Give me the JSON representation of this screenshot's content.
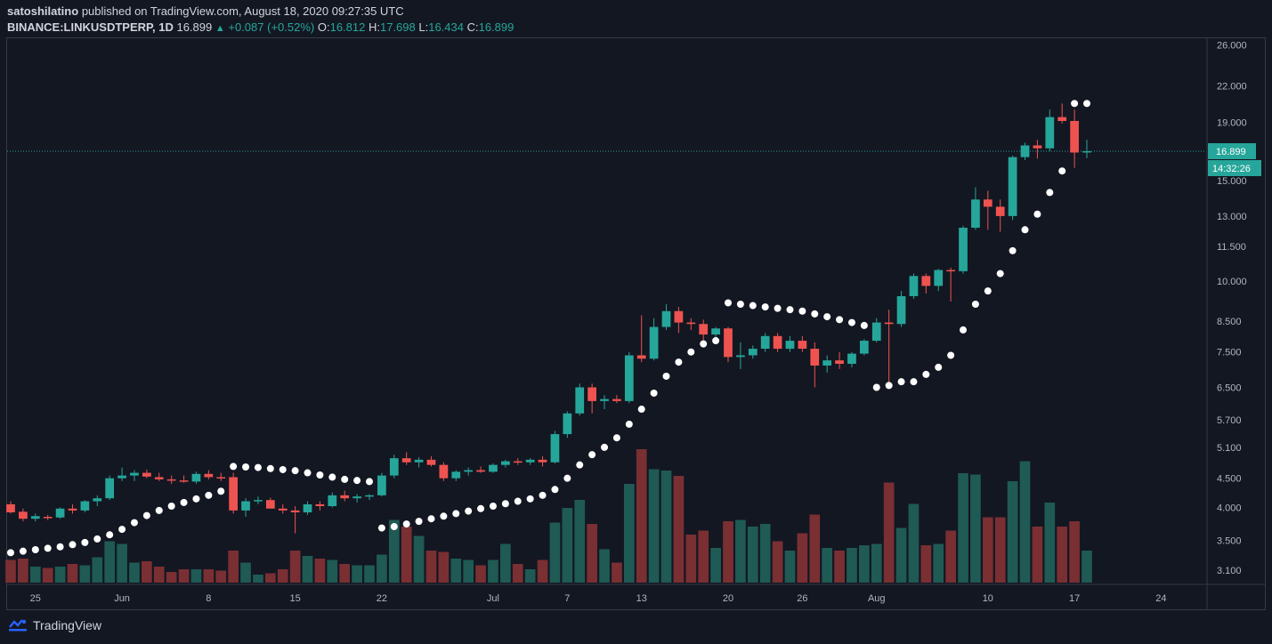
{
  "header": {
    "author": "satoshilatino",
    "published_text": "published on TradingView.com, August 18, 2020 09:27:35 UTC",
    "symbol": "BINANCE:LINKUSDTPERP, 1D",
    "last": "16.899",
    "change": "+0.087 (+0.52%)",
    "o_label": "O:",
    "o": "16.812",
    "h_label": "H:",
    "h": "17.698",
    "l_label": "L:",
    "l": "16.434",
    "c_label": "C:",
    "c": "16.899"
  },
  "price_tag": "16.899",
  "time_tag": "14:32:26",
  "footer": {
    "brand": "TradingView",
    "icon": "tradingview-logo-icon"
  },
  "colors": {
    "up": "#26a69a",
    "down": "#ef5350",
    "vol_up": "#1f5a55",
    "vol_down": "#7a2f33",
    "bg": "#131722",
    "sar": "#ffffff"
  },
  "chart_data": {
    "type": "candlestick",
    "scale": "log",
    "ylim": [
      2.95,
      26.5
    ],
    "y_ticks": [
      "26.000",
      "22.000",
      "19.000",
      "16.899",
      "15.000",
      "13.000",
      "11.500",
      "10.000",
      "8.500",
      "7.500",
      "6.500",
      "5.700",
      "5.100",
      "4.500",
      "4.000",
      "3.500",
      "3.100"
    ],
    "x_ticks": [
      {
        "label": "25",
        "date": "2020-05-25"
      },
      {
        "label": "Jun",
        "date": "2020-06-01"
      },
      {
        "label": "8",
        "date": "2020-06-08"
      },
      {
        "label": "15",
        "date": "2020-06-15"
      },
      {
        "label": "22",
        "date": "2020-06-22"
      },
      {
        "label": "Jul",
        "date": "2020-07-01"
      },
      {
        "label": "7",
        "date": "2020-07-07"
      },
      {
        "label": "13",
        "date": "2020-07-13"
      },
      {
        "label": "20",
        "date": "2020-07-20"
      },
      {
        "label": "26",
        "date": "2020-07-26"
      },
      {
        "label": "Aug",
        "date": "2020-08-01"
      },
      {
        "label": "10",
        "date": "2020-08-10"
      },
      {
        "label": "17",
        "date": "2020-08-17"
      },
      {
        "label": "24",
        "date": "2020-08-24"
      }
    ],
    "last_price": 16.899,
    "candles": [
      {
        "d": "2020-05-23",
        "o": 4.05,
        "h": 4.1,
        "l": 3.9,
        "c": 3.92,
        "v": 0.17
      },
      {
        "d": "2020-05-24",
        "o": 3.93,
        "h": 3.98,
        "l": 3.78,
        "c": 3.82,
        "v": 0.18
      },
      {
        "d": "2020-05-25",
        "o": 3.82,
        "h": 3.9,
        "l": 3.78,
        "c": 3.86,
        "v": 0.12
      },
      {
        "d": "2020-05-26",
        "o": 3.85,
        "h": 3.88,
        "l": 3.8,
        "c": 3.84,
        "v": 0.11
      },
      {
        "d": "2020-05-27",
        "o": 3.84,
        "h": 4.0,
        "l": 3.82,
        "c": 3.98,
        "v": 0.12
      },
      {
        "d": "2020-05-28",
        "o": 3.98,
        "h": 4.05,
        "l": 3.9,
        "c": 3.95,
        "v": 0.14
      },
      {
        "d": "2020-05-29",
        "o": 3.95,
        "h": 4.12,
        "l": 3.92,
        "c": 4.1,
        "v": 0.13
      },
      {
        "d": "2020-05-30",
        "o": 4.1,
        "h": 4.2,
        "l": 4.02,
        "c": 4.15,
        "v": 0.19
      },
      {
        "d": "2020-05-31",
        "o": 4.15,
        "h": 4.55,
        "l": 4.12,
        "c": 4.5,
        "v": 0.31
      },
      {
        "d": "2020-06-01",
        "o": 4.5,
        "h": 4.7,
        "l": 4.45,
        "c": 4.55,
        "v": 0.29
      },
      {
        "d": "2020-06-02",
        "o": 4.55,
        "h": 4.65,
        "l": 4.45,
        "c": 4.6,
        "v": 0.15
      },
      {
        "d": "2020-06-03",
        "o": 4.6,
        "h": 4.66,
        "l": 4.5,
        "c": 4.53,
        "v": 0.16
      },
      {
        "d": "2020-06-04",
        "o": 4.52,
        "h": 4.6,
        "l": 4.45,
        "c": 4.48,
        "v": 0.12
      },
      {
        "d": "2020-06-05",
        "o": 4.48,
        "h": 4.55,
        "l": 4.4,
        "c": 4.46,
        "v": 0.08
      },
      {
        "d": "2020-06-06",
        "o": 4.46,
        "h": 4.55,
        "l": 4.42,
        "c": 4.44,
        "v": 0.1
      },
      {
        "d": "2020-06-07",
        "o": 4.44,
        "h": 4.62,
        "l": 4.4,
        "c": 4.58,
        "v": 0.1
      },
      {
        "d": "2020-06-08",
        "o": 4.58,
        "h": 4.65,
        "l": 4.48,
        "c": 4.52,
        "v": 0.1
      },
      {
        "d": "2020-06-09",
        "o": 4.52,
        "h": 4.6,
        "l": 4.45,
        "c": 4.5,
        "v": 0.09
      },
      {
        "d": "2020-06-10",
        "o": 4.52,
        "h": 4.6,
        "l": 3.9,
        "c": 3.95,
        "v": 0.24
      },
      {
        "d": "2020-06-11",
        "o": 3.95,
        "h": 4.15,
        "l": 3.85,
        "c": 4.1,
        "v": 0.15
      },
      {
        "d": "2020-06-12",
        "o": 4.1,
        "h": 4.18,
        "l": 4.05,
        "c": 4.12,
        "v": 0.06
      },
      {
        "d": "2020-06-13",
        "o": 4.12,
        "h": 4.16,
        "l": 4.0,
        "c": 3.98,
        "v": 0.07
      },
      {
        "d": "2020-06-14",
        "o": 3.98,
        "h": 4.05,
        "l": 3.9,
        "c": 3.95,
        "v": 0.1
      },
      {
        "d": "2020-06-15",
        "o": 3.95,
        "h": 4.02,
        "l": 3.6,
        "c": 3.92,
        "v": 0.24
      },
      {
        "d": "2020-06-16",
        "o": 3.92,
        "h": 4.1,
        "l": 3.88,
        "c": 4.05,
        "v": 0.2
      },
      {
        "d": "2020-06-17",
        "o": 4.05,
        "h": 4.1,
        "l": 3.95,
        "c": 4.02,
        "v": 0.18
      },
      {
        "d": "2020-06-18",
        "o": 4.02,
        "h": 4.25,
        "l": 4.0,
        "c": 4.2,
        "v": 0.17
      },
      {
        "d": "2020-06-19",
        "o": 4.2,
        "h": 4.28,
        "l": 4.1,
        "c": 4.15,
        "v": 0.14
      },
      {
        "d": "2020-06-20",
        "o": 4.15,
        "h": 4.22,
        "l": 4.08,
        "c": 4.18,
        "v": 0.13
      },
      {
        "d": "2020-06-21",
        "o": 4.18,
        "h": 4.22,
        "l": 4.12,
        "c": 4.2,
        "v": 0.13
      },
      {
        "d": "2020-06-22",
        "o": 4.2,
        "h": 4.6,
        "l": 4.18,
        "c": 4.55,
        "v": 0.21
      },
      {
        "d": "2020-06-23",
        "o": 4.55,
        "h": 4.95,
        "l": 4.5,
        "c": 4.88,
        "v": 0.47
      },
      {
        "d": "2020-06-24",
        "o": 4.88,
        "h": 5.0,
        "l": 4.75,
        "c": 4.8,
        "v": 0.42
      },
      {
        "d": "2020-06-25",
        "o": 4.8,
        "h": 4.9,
        "l": 4.7,
        "c": 4.85,
        "v": 0.35
      },
      {
        "d": "2020-06-26",
        "o": 4.85,
        "h": 4.92,
        "l": 4.72,
        "c": 4.75,
        "v": 0.24
      },
      {
        "d": "2020-06-27",
        "o": 4.75,
        "h": 4.8,
        "l": 4.45,
        "c": 4.5,
        "v": 0.23
      },
      {
        "d": "2020-06-28",
        "o": 4.5,
        "h": 4.65,
        "l": 4.45,
        "c": 4.62,
        "v": 0.18
      },
      {
        "d": "2020-06-29",
        "o": 4.62,
        "h": 4.7,
        "l": 4.55,
        "c": 4.65,
        "v": 0.17
      },
      {
        "d": "2020-06-30",
        "o": 4.65,
        "h": 4.72,
        "l": 4.6,
        "c": 4.62,
        "v": 0.13
      },
      {
        "d": "2020-07-01",
        "o": 4.62,
        "h": 4.78,
        "l": 4.6,
        "c": 4.75,
        "v": 0.17
      },
      {
        "d": "2020-07-02",
        "o": 4.75,
        "h": 4.85,
        "l": 4.7,
        "c": 4.82,
        "v": 0.29
      },
      {
        "d": "2020-07-03",
        "o": 4.82,
        "h": 4.88,
        "l": 4.75,
        "c": 4.8,
        "v": 0.14
      },
      {
        "d": "2020-07-04",
        "o": 4.8,
        "h": 4.88,
        "l": 4.75,
        "c": 4.85,
        "v": 0.1
      },
      {
        "d": "2020-07-05",
        "o": 4.85,
        "h": 4.92,
        "l": 4.72,
        "c": 4.8,
        "v": 0.17
      },
      {
        "d": "2020-07-06",
        "o": 4.8,
        "h": 5.45,
        "l": 4.78,
        "c": 5.38,
        "v": 0.45
      },
      {
        "d": "2020-07-07",
        "o": 5.38,
        "h": 5.9,
        "l": 5.3,
        "c": 5.85,
        "v": 0.56
      },
      {
        "d": "2020-07-08",
        "o": 5.85,
        "h": 6.6,
        "l": 5.8,
        "c": 6.5,
        "v": 0.62
      },
      {
        "d": "2020-07-09",
        "o": 6.5,
        "h": 6.6,
        "l": 5.85,
        "c": 6.15,
        "v": 0.44
      },
      {
        "d": "2020-07-10",
        "o": 6.15,
        "h": 6.3,
        "l": 5.95,
        "c": 6.2,
        "v": 0.25
      },
      {
        "d": "2020-07-11",
        "o": 6.2,
        "h": 6.3,
        "l": 6.1,
        "c": 6.15,
        "v": 0.15
      },
      {
        "d": "2020-07-12",
        "o": 6.15,
        "h": 7.5,
        "l": 6.1,
        "c": 7.4,
        "v": 0.74
      },
      {
        "d": "2020-07-13",
        "o": 7.4,
        "h": 8.7,
        "l": 7.2,
        "c": 7.3,
        "v": 1.0
      },
      {
        "d": "2020-07-14",
        "o": 7.3,
        "h": 8.6,
        "l": 7.25,
        "c": 8.3,
        "v": 0.85
      },
      {
        "d": "2020-07-15",
        "o": 8.3,
        "h": 9.1,
        "l": 8.2,
        "c": 8.85,
        "v": 0.84
      },
      {
        "d": "2020-07-16",
        "o": 8.85,
        "h": 9.0,
        "l": 8.1,
        "c": 8.45,
        "v": 0.8
      },
      {
        "d": "2020-07-17",
        "o": 8.45,
        "h": 8.6,
        "l": 8.2,
        "c": 8.4,
        "v": 0.36
      },
      {
        "d": "2020-07-18",
        "o": 8.4,
        "h": 8.55,
        "l": 7.8,
        "c": 8.05,
        "v": 0.39
      },
      {
        "d": "2020-07-19",
        "o": 8.05,
        "h": 8.3,
        "l": 7.9,
        "c": 8.25,
        "v": 0.26
      },
      {
        "d": "2020-07-20",
        "o": 8.25,
        "h": 8.3,
        "l": 7.2,
        "c": 7.35,
        "v": 0.46
      },
      {
        "d": "2020-07-21",
        "o": 7.35,
        "h": 7.8,
        "l": 7.0,
        "c": 7.4,
        "v": 0.47
      },
      {
        "d": "2020-07-22",
        "o": 7.4,
        "h": 7.7,
        "l": 7.3,
        "c": 7.6,
        "v": 0.42
      },
      {
        "d": "2020-07-23",
        "o": 7.6,
        "h": 8.1,
        "l": 7.5,
        "c": 8.0,
        "v": 0.44
      },
      {
        "d": "2020-07-24",
        "o": 8.0,
        "h": 8.1,
        "l": 7.5,
        "c": 7.6,
        "v": 0.31
      },
      {
        "d": "2020-07-25",
        "o": 7.6,
        "h": 8.0,
        "l": 7.5,
        "c": 7.85,
        "v": 0.24
      },
      {
        "d": "2020-07-26",
        "o": 7.85,
        "h": 8.0,
        "l": 7.5,
        "c": 7.6,
        "v": 0.37
      },
      {
        "d": "2020-07-27",
        "o": 7.6,
        "h": 7.8,
        "l": 6.5,
        "c": 7.1,
        "v": 0.51
      },
      {
        "d": "2020-07-28",
        "o": 7.1,
        "h": 7.4,
        "l": 6.9,
        "c": 7.25,
        "v": 0.26
      },
      {
        "d": "2020-07-29",
        "o": 7.25,
        "h": 7.5,
        "l": 7.0,
        "c": 7.15,
        "v": 0.24
      },
      {
        "d": "2020-07-30",
        "o": 7.15,
        "h": 7.5,
        "l": 7.05,
        "c": 7.45,
        "v": 0.26
      },
      {
        "d": "2020-07-31",
        "o": 7.45,
        "h": 7.9,
        "l": 7.4,
        "c": 7.85,
        "v": 0.28
      },
      {
        "d": "2020-08-01",
        "o": 7.85,
        "h": 8.6,
        "l": 7.8,
        "c": 8.45,
        "v": 0.29
      },
      {
        "d": "2020-08-02",
        "o": 8.45,
        "h": 8.9,
        "l": 6.6,
        "c": 8.4,
        "v": 0.75
      },
      {
        "d": "2020-08-03",
        "o": 8.4,
        "h": 9.6,
        "l": 8.3,
        "c": 9.4,
        "v": 0.41
      },
      {
        "d": "2020-08-04",
        "o": 9.4,
        "h": 10.3,
        "l": 9.3,
        "c": 10.2,
        "v": 0.59
      },
      {
        "d": "2020-08-05",
        "o": 10.2,
        "h": 10.3,
        "l": 9.5,
        "c": 9.8,
        "v": 0.28
      },
      {
        "d": "2020-08-06",
        "o": 9.8,
        "h": 10.5,
        "l": 9.6,
        "c": 10.45,
        "v": 0.29
      },
      {
        "d": "2020-08-07",
        "o": 10.45,
        "h": 10.55,
        "l": 9.2,
        "c": 10.4,
        "v": 0.39
      },
      {
        "d": "2020-08-08",
        "o": 10.4,
        "h": 12.5,
        "l": 10.3,
        "c": 12.4,
        "v": 0.82
      },
      {
        "d": "2020-08-09",
        "o": 12.4,
        "h": 14.6,
        "l": 12.3,
        "c": 13.9,
        "v": 0.81
      },
      {
        "d": "2020-08-10",
        "o": 13.9,
        "h": 14.4,
        "l": 12.3,
        "c": 13.5,
        "v": 0.49
      },
      {
        "d": "2020-08-11",
        "o": 13.5,
        "h": 13.9,
        "l": 12.2,
        "c": 13.0,
        "v": 0.49
      },
      {
        "d": "2020-08-12",
        "o": 13.0,
        "h": 16.6,
        "l": 12.8,
        "c": 16.5,
        "v": 0.76
      },
      {
        "d": "2020-08-13",
        "o": 16.5,
        "h": 17.5,
        "l": 16.3,
        "c": 17.3,
        "v": 0.91
      },
      {
        "d": "2020-08-14",
        "o": 17.3,
        "h": 17.7,
        "l": 16.4,
        "c": 17.1,
        "v": 0.42
      },
      {
        "d": "2020-08-15",
        "o": 17.1,
        "h": 20.0,
        "l": 16.9,
        "c": 19.4,
        "v": 0.6
      },
      {
        "d": "2020-08-16",
        "o": 19.4,
        "h": 20.5,
        "l": 18.9,
        "c": 19.1,
        "v": 0.42
      },
      {
        "d": "2020-08-17",
        "o": 19.1,
        "h": 20.0,
        "l": 15.8,
        "c": 16.81,
        "v": 0.46
      },
      {
        "d": "2020-08-18",
        "o": 16.81,
        "h": 17.7,
        "l": 16.43,
        "c": 16.9,
        "v": 0.24
      }
    ],
    "sar": [
      {
        "d": "2020-05-23",
        "v": 3.33
      },
      {
        "d": "2020-05-24",
        "v": 3.35
      },
      {
        "d": "2020-05-25",
        "v": 3.37
      },
      {
        "d": "2020-05-26",
        "v": 3.39
      },
      {
        "d": "2020-05-27",
        "v": 3.41
      },
      {
        "d": "2020-05-28",
        "v": 3.44
      },
      {
        "d": "2020-05-29",
        "v": 3.47
      },
      {
        "d": "2020-05-30",
        "v": 3.52
      },
      {
        "d": "2020-05-31",
        "v": 3.58
      },
      {
        "d": "2020-06-01",
        "v": 3.66
      },
      {
        "d": "2020-06-02",
        "v": 3.76
      },
      {
        "d": "2020-06-03",
        "v": 3.87
      },
      {
        "d": "2020-06-04",
        "v": 3.95
      },
      {
        "d": "2020-06-05",
        "v": 4.02
      },
      {
        "d": "2020-06-06",
        "v": 4.08
      },
      {
        "d": "2020-06-07",
        "v": 4.14
      },
      {
        "d": "2020-06-08",
        "v": 4.2
      },
      {
        "d": "2020-06-09",
        "v": 4.27
      },
      {
        "d": "2020-06-10",
        "v": 4.72
      },
      {
        "d": "2020-06-11",
        "v": 4.71
      },
      {
        "d": "2020-06-12",
        "v": 4.7
      },
      {
        "d": "2020-06-13",
        "v": 4.68
      },
      {
        "d": "2020-06-14",
        "v": 4.66
      },
      {
        "d": "2020-06-15",
        "v": 4.64
      },
      {
        "d": "2020-06-16",
        "v": 4.6
      },
      {
        "d": "2020-06-17",
        "v": 4.56
      },
      {
        "d": "2020-06-18",
        "v": 4.52
      },
      {
        "d": "2020-06-19",
        "v": 4.48
      },
      {
        "d": "2020-06-20",
        "v": 4.46
      },
      {
        "d": "2020-06-21",
        "v": 4.44
      },
      {
        "d": "2020-06-22",
        "v": 3.68
      },
      {
        "d": "2020-06-23",
        "v": 3.7
      },
      {
        "d": "2020-06-24",
        "v": 3.74
      },
      {
        "d": "2020-06-25",
        "v": 3.78
      },
      {
        "d": "2020-06-26",
        "v": 3.82
      },
      {
        "d": "2020-06-27",
        "v": 3.86
      },
      {
        "d": "2020-06-28",
        "v": 3.9
      },
      {
        "d": "2020-06-29",
        "v": 3.94
      },
      {
        "d": "2020-06-30",
        "v": 3.98
      },
      {
        "d": "2020-07-01",
        "v": 4.02
      },
      {
        "d": "2020-07-02",
        "v": 4.06
      },
      {
        "d": "2020-07-03",
        "v": 4.1
      },
      {
        "d": "2020-07-04",
        "v": 4.14
      },
      {
        "d": "2020-07-05",
        "v": 4.2
      },
      {
        "d": "2020-07-06",
        "v": 4.3
      },
      {
        "d": "2020-07-07",
        "v": 4.5
      },
      {
        "d": "2020-07-08",
        "v": 4.75
      },
      {
        "d": "2020-07-09",
        "v": 4.95
      },
      {
        "d": "2020-07-10",
        "v": 5.1
      },
      {
        "d": "2020-07-11",
        "v": 5.3
      },
      {
        "d": "2020-07-12",
        "v": 5.6
      },
      {
        "d": "2020-07-13",
        "v": 5.95
      },
      {
        "d": "2020-07-14",
        "v": 6.35
      },
      {
        "d": "2020-07-15",
        "v": 6.8
      },
      {
        "d": "2020-07-16",
        "v": 7.2
      },
      {
        "d": "2020-07-17",
        "v": 7.5
      },
      {
        "d": "2020-07-18",
        "v": 7.75
      },
      {
        "d": "2020-07-19",
        "v": 7.85
      },
      {
        "d": "2020-07-20",
        "v": 9.15
      },
      {
        "d": "2020-07-21",
        "v": 9.1
      },
      {
        "d": "2020-07-22",
        "v": 9.05
      },
      {
        "d": "2020-07-23",
        "v": 9.0
      },
      {
        "d": "2020-07-24",
        "v": 8.95
      },
      {
        "d": "2020-07-25",
        "v": 8.9
      },
      {
        "d": "2020-07-26",
        "v": 8.85
      },
      {
        "d": "2020-07-27",
        "v": 8.75
      },
      {
        "d": "2020-07-28",
        "v": 8.65
      },
      {
        "d": "2020-07-29",
        "v": 8.55
      },
      {
        "d": "2020-07-30",
        "v": 8.45
      },
      {
        "d": "2020-07-31",
        "v": 8.35
      },
      {
        "d": "2020-08-01",
        "v": 6.5
      },
      {
        "d": "2020-08-02",
        "v": 6.55
      },
      {
        "d": "2020-08-03",
        "v": 6.65
      },
      {
        "d": "2020-08-04",
        "v": 6.65
      },
      {
        "d": "2020-08-05",
        "v": 6.85
      },
      {
        "d": "2020-08-06",
        "v": 7.05
      },
      {
        "d": "2020-08-07",
        "v": 7.4
      },
      {
        "d": "2020-08-08",
        "v": 8.2
      },
      {
        "d": "2020-08-09",
        "v": 9.1
      },
      {
        "d": "2020-08-10",
        "v": 9.6
      },
      {
        "d": "2020-08-11",
        "v": 10.3
      },
      {
        "d": "2020-08-12",
        "v": 11.3
      },
      {
        "d": "2020-08-13",
        "v": 12.3
      },
      {
        "d": "2020-08-14",
        "v": 13.1
      },
      {
        "d": "2020-08-15",
        "v": 14.3
      },
      {
        "d": "2020-08-16",
        "v": 15.6
      },
      {
        "d": "2020-08-17",
        "v": 20.5
      },
      {
        "d": "2020-08-18",
        "v": 20.5
      }
    ]
  }
}
